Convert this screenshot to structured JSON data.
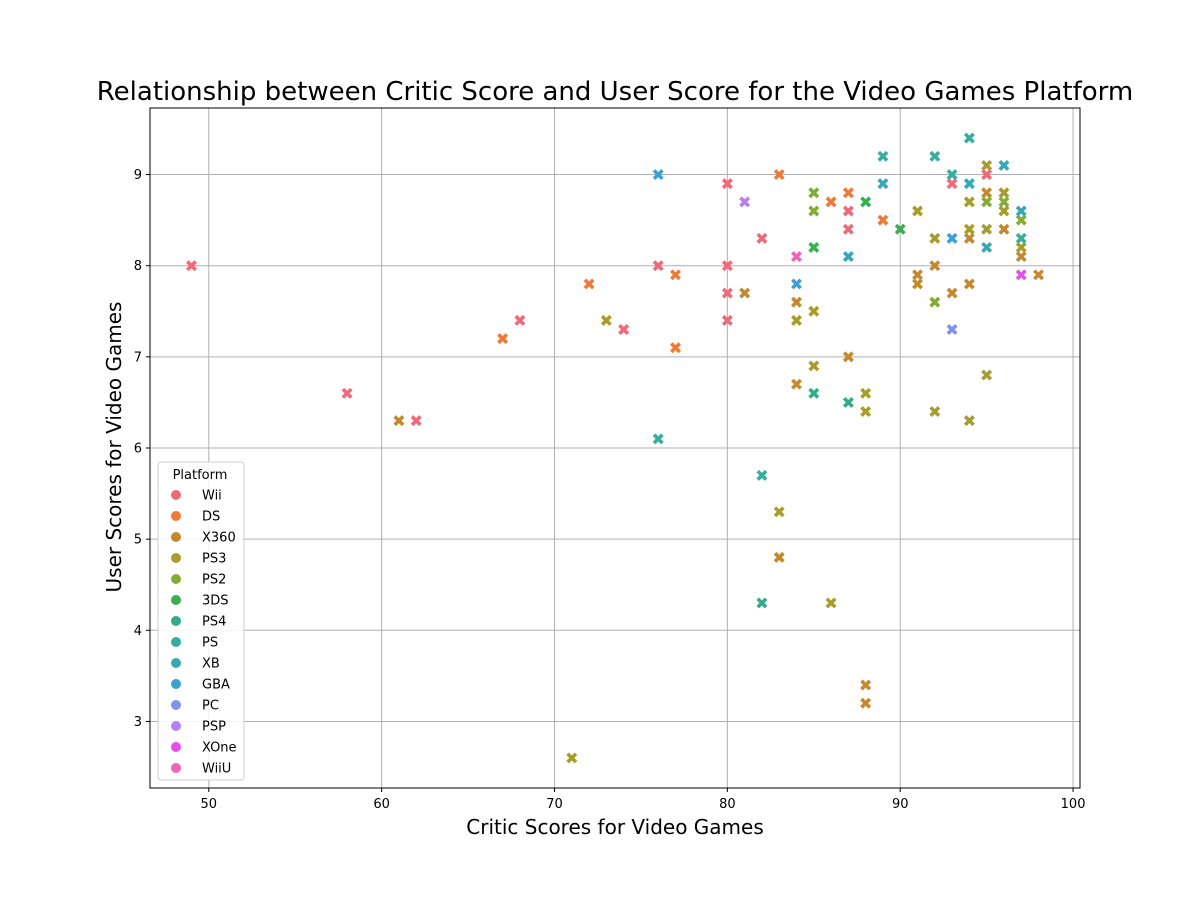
{
  "chart_data": {
    "type": "scatter",
    "title": "Relationship between Critic Score and User Score for the Video Games Platform",
    "xlabel": "Critic Scores for Video Games",
    "ylabel": "User Scores for Video Games",
    "xlim": [
      46.6,
      100.4
    ],
    "ylim": [
      2.27,
      9.73
    ],
    "xticks": [
      50,
      60,
      70,
      80,
      90,
      100
    ],
    "yticks": [
      3,
      4,
      5,
      6,
      7,
      8,
      9
    ],
    "grid": true,
    "legend": {
      "title": "Platform",
      "position": "lower-left"
    },
    "series": [
      {
        "name": "Wii",
        "color": "#f0697a",
        "points": [
          [
            49,
            8.0
          ],
          [
            58,
            6.6
          ],
          [
            62,
            6.3
          ],
          [
            68,
            7.4
          ],
          [
            74,
            7.3
          ],
          [
            76,
            8.0
          ],
          [
            80,
            8.9
          ],
          [
            80,
            8.0
          ],
          [
            80,
            7.7
          ],
          [
            80,
            7.4
          ],
          [
            82,
            8.3
          ],
          [
            87,
            8.6
          ],
          [
            87,
            8.4
          ],
          [
            93,
            8.9
          ],
          [
            95,
            9.0
          ]
        ]
      },
      {
        "name": "DS",
        "color": "#ee7a37",
        "points": [
          [
            67,
            7.2
          ],
          [
            72,
            7.8
          ],
          [
            77,
            7.9
          ],
          [
            77,
            7.1
          ],
          [
            83,
            9.0
          ],
          [
            86,
            8.7
          ],
          [
            87,
            8.8
          ],
          [
            89,
            8.5
          ]
        ]
      },
      {
        "name": "X360",
        "color": "#c3892f",
        "points": [
          [
            61,
            6.3
          ],
          [
            81,
            7.7
          ],
          [
            84,
            7.6
          ],
          [
            84,
            6.7
          ],
          [
            87,
            7.0
          ],
          [
            83,
            4.8
          ],
          [
            88,
            3.4
          ],
          [
            88,
            3.2
          ],
          [
            91,
            7.9
          ],
          [
            91,
            7.8
          ],
          [
            92,
            8.0
          ],
          [
            93,
            7.7
          ],
          [
            94,
            8.3
          ],
          [
            94,
            7.8
          ],
          [
            95,
            8.8
          ],
          [
            96,
            8.4
          ],
          [
            97,
            8.1
          ],
          [
            98,
            7.9
          ]
        ]
      },
      {
        "name": "PS3",
        "color": "#a79d2c",
        "points": [
          [
            71,
            2.6
          ],
          [
            73,
            7.4
          ],
          [
            83,
            5.3
          ],
          [
            84,
            7.4
          ],
          [
            85,
            7.5
          ],
          [
            85,
            6.9
          ],
          [
            86,
            4.3
          ],
          [
            88,
            6.6
          ],
          [
            88,
            6.4
          ],
          [
            91,
            8.6
          ],
          [
            92,
            8.3
          ],
          [
            92,
            6.4
          ],
          [
            94,
            8.7
          ],
          [
            94,
            8.4
          ],
          [
            94,
            6.3
          ],
          [
            95,
            9.1
          ],
          [
            95,
            8.4
          ],
          [
            95,
            6.8
          ],
          [
            96,
            8.8
          ],
          [
            96,
            8.6
          ],
          [
            97,
            8.2
          ]
        ]
      },
      {
        "name": "PS2",
        "color": "#86ab33",
        "points": [
          [
            85,
            8.8
          ],
          [
            85,
            8.6
          ],
          [
            92,
            7.6
          ],
          [
            95,
            8.7
          ],
          [
            96,
            8.7
          ],
          [
            97,
            8.5
          ]
        ]
      },
      {
        "name": "3DS",
        "color": "#3aaf4f",
        "points": [
          [
            85,
            8.2
          ],
          [
            88,
            8.7
          ],
          [
            90,
            8.4
          ]
        ]
      },
      {
        "name": "PS4",
        "color": "#34aa89",
        "points": [
          [
            82,
            4.3
          ],
          [
            85,
            6.6
          ],
          [
            87,
            6.5
          ]
        ]
      },
      {
        "name": "PS",
        "color": "#36ad9f",
        "points": [
          [
            76,
            6.1
          ],
          [
            82,
            5.7
          ],
          [
            89,
            9.2
          ],
          [
            92,
            9.2
          ],
          [
            93,
            9.0
          ],
          [
            94,
            9.4
          ],
          [
            97,
            8.3
          ]
        ]
      },
      {
        "name": "XB",
        "color": "#38a8b6",
        "points": [
          [
            87,
            8.1
          ],
          [
            89,
            8.9
          ],
          [
            94,
            8.9
          ],
          [
            95,
            8.2
          ],
          [
            96,
            9.1
          ],
          [
            97,
            8.6
          ]
        ]
      },
      {
        "name": "GBA",
        "color": "#3ba1d4",
        "points": [
          [
            76,
            9.0
          ],
          [
            84,
            7.8
          ],
          [
            93,
            8.3
          ]
        ]
      },
      {
        "name": "PC",
        "color": "#7f93ee",
        "points": [
          [
            93,
            7.3
          ]
        ]
      },
      {
        "name": "PSP",
        "color": "#b680ef",
        "points": [
          [
            81,
            8.7
          ]
        ]
      },
      {
        "name": "XOne",
        "color": "#e74ced",
        "points": [
          [
            97,
            7.9
          ]
        ]
      },
      {
        "name": "WiiU",
        "color": "#f062b8",
        "points": [
          [
            84,
            8.1
          ]
        ]
      }
    ]
  }
}
